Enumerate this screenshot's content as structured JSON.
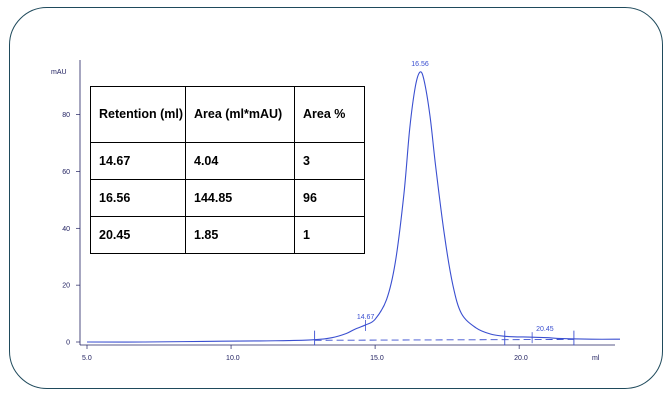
{
  "chart_data": {
    "type": "line",
    "ylabel": "mAU",
    "xlabel": "ml",
    "xlim": [
      5.0,
      23.5
    ],
    "ylim": [
      -3,
      100
    ],
    "x_ticks": [
      "5.0",
      "10.0",
      "15.0",
      "20.0"
    ],
    "y_ticks": [
      "0",
      "20",
      "40",
      "60",
      "80"
    ],
    "grid": false,
    "series": [
      {
        "color": "#3a4fd0",
        "x": [
          5.0,
          7.0,
          9.0,
          11.0,
          12.0,
          12.9,
          13.5,
          14.0,
          14.3,
          14.67,
          15.0,
          15.4,
          15.7,
          16.0,
          16.2,
          16.4,
          16.56,
          16.7,
          16.9,
          17.1,
          17.4,
          17.7,
          18.0,
          18.5,
          19.0,
          19.5,
          20.0,
          20.45,
          21.0,
          21.5,
          22.5,
          23.5
        ],
        "y": [
          0.0,
          0.0,
          0.2,
          0.4,
          0.5,
          0.8,
          1.5,
          3.0,
          4.5,
          6.0,
          8.0,
          15.0,
          28.0,
          52.0,
          75.0,
          90.0,
          95.0,
          92.0,
          80.0,
          62.0,
          38.0,
          20.0,
          10.0,
          5.0,
          2.8,
          2.0,
          1.8,
          1.7,
          1.5,
          1.2,
          1.0,
          1.0
        ]
      }
    ],
    "peaks": [
      {
        "x": 14.67,
        "label": "14.67"
      },
      {
        "x": 16.56,
        "label": "16.56"
      },
      {
        "x": 20.45,
        "label": "20.45"
      }
    ],
    "integration_markers_x": [
      12.9,
      19.5,
      21.9
    ],
    "baseline_x": [
      12.9,
      21.9
    ],
    "line_color": "#3a4fd0"
  },
  "table": {
    "headers": [
      "Retention (ml)",
      "Area (ml*mAU)",
      "Area %"
    ],
    "rows": [
      [
        "14.67",
        "4.04",
        "3"
      ],
      [
        "16.56",
        "144.85",
        "96"
      ],
      [
        "20.45",
        "1.85",
        "1"
      ]
    ]
  }
}
